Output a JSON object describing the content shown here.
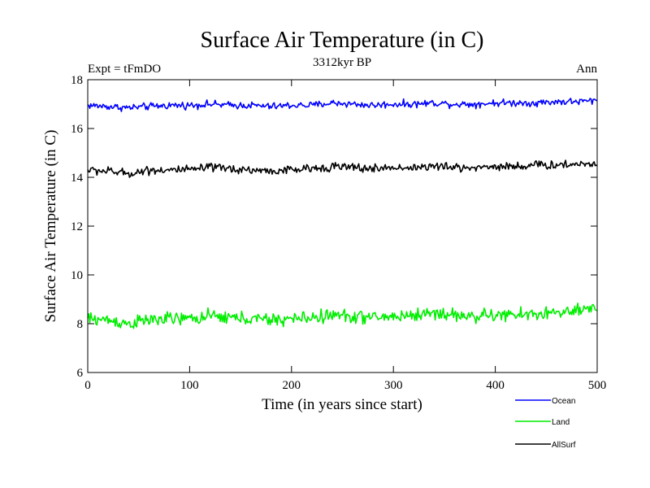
{
  "chart_data": {
    "type": "line",
    "title": "Surface Air Temperature (in C)",
    "subtitle": "3312kyr BP",
    "left_label": "Expt = tFmDO",
    "right_label": "Ann",
    "xlabel": "Time (in years since start)",
    "ylabel": "Surface Air Temperature (in C)",
    "xlim": [
      0,
      500
    ],
    "ylim": [
      6,
      18
    ],
    "xticks": [
      0,
      100,
      200,
      300,
      400,
      500
    ],
    "yticks": [
      6,
      8,
      10,
      12,
      14,
      16,
      18
    ],
    "grid": false,
    "legend_position": "bottom-right",
    "x": [
      0,
      20,
      40,
      60,
      80,
      100,
      120,
      140,
      160,
      180,
      200,
      220,
      240,
      260,
      280,
      300,
      320,
      340,
      360,
      380,
      400,
      420,
      440,
      460,
      480,
      500
    ],
    "series": [
      {
        "name": "Ocean",
        "color": "#0000ff",
        "values": [
          16.95,
          16.9,
          16.85,
          16.9,
          16.95,
          16.95,
          17.0,
          16.95,
          16.95,
          16.9,
          16.95,
          16.95,
          17.05,
          17.0,
          16.95,
          17.0,
          17.0,
          17.05,
          17.0,
          17.0,
          17.05,
          17.05,
          17.05,
          17.1,
          17.1,
          17.15
        ],
        "noise": 0.09
      },
      {
        "name": "Land",
        "color": "#00ee00",
        "values": [
          8.2,
          8.15,
          8.0,
          8.15,
          8.2,
          8.2,
          8.3,
          8.25,
          8.2,
          8.15,
          8.2,
          8.25,
          8.35,
          8.3,
          8.25,
          8.3,
          8.35,
          8.45,
          8.35,
          8.3,
          8.35,
          8.35,
          8.4,
          8.45,
          8.5,
          8.6
        ],
        "noise": 0.17
      },
      {
        "name": "AllSurf",
        "color": "#000000",
        "values": [
          14.3,
          14.25,
          14.15,
          14.3,
          14.3,
          14.3,
          14.4,
          14.35,
          14.3,
          14.25,
          14.3,
          14.35,
          14.45,
          14.4,
          14.35,
          14.4,
          14.4,
          14.45,
          14.4,
          14.4,
          14.45,
          14.45,
          14.5,
          14.5,
          14.55,
          14.55
        ],
        "noise": 0.11
      }
    ]
  }
}
